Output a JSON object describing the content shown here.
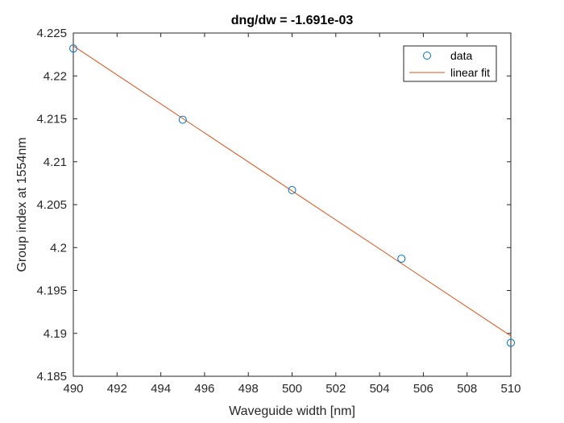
{
  "chart_data": {
    "type": "scatter",
    "title": "dng/dw = -1.691e-03",
    "xlabel": "Waveguide width [nm]",
    "ylabel": "Group index at 1554nm",
    "xlim": [
      490,
      510
    ],
    "ylim": [
      4.185,
      4.225
    ],
    "xticks": [
      "490",
      "492",
      "494",
      "496",
      "498",
      "500",
      "502",
      "504",
      "506",
      "508",
      "510"
    ],
    "yticks": [
      "4.185",
      "4.19",
      "4.195",
      "4.2",
      "4.205",
      "4.21",
      "4.215",
      "4.22",
      "4.225"
    ],
    "grid": false,
    "legend_position": "top-right",
    "series": [
      {
        "name": "data",
        "marker": "circle",
        "color": "#0072BD",
        "x": [
          490,
          495,
          500,
          505,
          510
        ],
        "y": [
          4.2232,
          4.2149,
          4.2067,
          4.1987,
          4.1889
        ]
      },
      {
        "name": "linear fit",
        "marker": "line",
        "color": "#D95319",
        "x": [
          490,
          510
        ],
        "y": [
          4.2235,
          4.1897
        ]
      }
    ]
  }
}
